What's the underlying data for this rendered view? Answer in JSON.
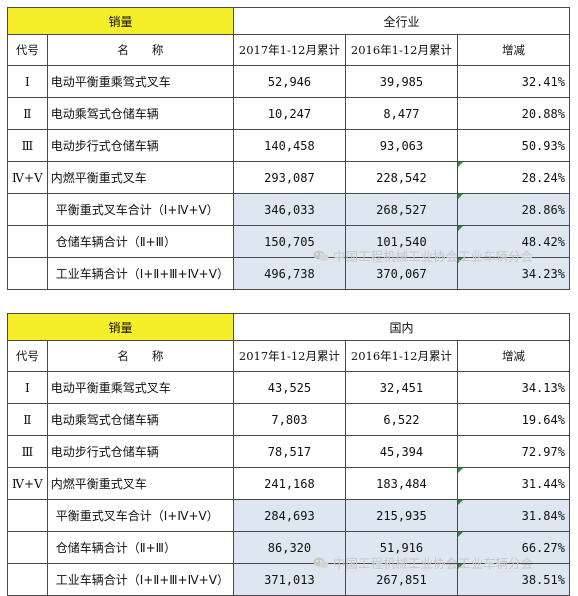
{
  "tables": [
    {
      "left_header": "销量",
      "right_header": "全行业",
      "col_headers": [
        "代号",
        "名　　称",
        "2017年1-12月累计",
        "2016年1-12月累计",
        "增减"
      ],
      "rows": [
        {
          "code": "Ⅰ",
          "name": "电动平衡重乘驾式叉车",
          "v2017": "52,946",
          "v2016": "39,985",
          "change": "32.41%"
        },
        {
          "code": "Ⅱ",
          "name": "电动乘驾式仓储车辆",
          "v2017": "10,247",
          "v2016": "8,477",
          "change": "20.88%"
        },
        {
          "code": "Ⅲ",
          "name": "电动步行式仓储车辆",
          "v2017": "140,458",
          "v2016": "93,063",
          "change": "50.93%"
        },
        {
          "code": "Ⅳ+Ⅴ",
          "name": "内燃平衡重式叉车",
          "v2017": "293,087",
          "v2016": "228,542",
          "change": "28.24%"
        },
        {
          "code": "",
          "name": "平衡重式叉车合计（Ⅰ+Ⅳ+Ⅴ）",
          "v2017": "346,033",
          "v2016": "268,527",
          "change": "28.86%"
        },
        {
          "code": "",
          "name": "仓储车辆合计（Ⅱ+Ⅲ）",
          "v2017": "150,705",
          "v2016": "101,540",
          "change": "48.42%"
        },
        {
          "code": "",
          "name": "工业车辆合计（Ⅰ+Ⅱ+Ⅲ+Ⅳ+Ⅴ）",
          "v2017": "496,738",
          "v2016": "370,067",
          "change": "34.23%"
        }
      ]
    },
    {
      "left_header": "销量",
      "right_header": "国内",
      "col_headers": [
        "代号",
        "名　　称",
        "2017年1-12月累计",
        "2016年1-12月累计",
        "增减"
      ],
      "rows": [
        {
          "code": "Ⅰ",
          "name": "电动平衡重乘驾式叉车",
          "v2017": "43,525",
          "v2016": "32,451",
          "change": "34.13%"
        },
        {
          "code": "Ⅱ",
          "name": "电动乘驾式仓储车辆",
          "v2017": "7,803",
          "v2016": "6,522",
          "change": "19.64%"
        },
        {
          "code": "Ⅲ",
          "name": "电动步行式仓储车辆",
          "v2017": "78,517",
          "v2016": "45,394",
          "change": "72.97%"
        },
        {
          "code": "Ⅳ+Ⅴ",
          "name": "内燃平衡重式叉车",
          "v2017": "241,168",
          "v2016": "183,484",
          "change": "31.44%"
        },
        {
          "code": "",
          "name": "平衡重式叉车合计（Ⅰ+Ⅳ+Ⅴ）",
          "v2017": "284,693",
          "v2016": "215,935",
          "change": "31.84%"
        },
        {
          "code": "",
          "name": "仓储车辆合计（Ⅱ+Ⅲ）",
          "v2017": "86,320",
          "v2016": "51,916",
          "change": "66.27%"
        },
        {
          "code": "",
          "name": "工业车辆合计（Ⅰ+Ⅱ+Ⅲ+Ⅳ+Ⅴ）",
          "v2017": "371,013",
          "v2016": "267,851",
          "change": "38.51%"
        }
      ]
    }
  ],
  "watermark": {
    "text": "中国工程机械工业协会工业车辆分会",
    "icon": "wechat-icon"
  },
  "colors": {
    "header_yellow": "#f5ee2a",
    "subtotal_blue": "#dde6f1",
    "marker_green": "#2e8b3e",
    "watermark": "#c7c7c7"
  }
}
